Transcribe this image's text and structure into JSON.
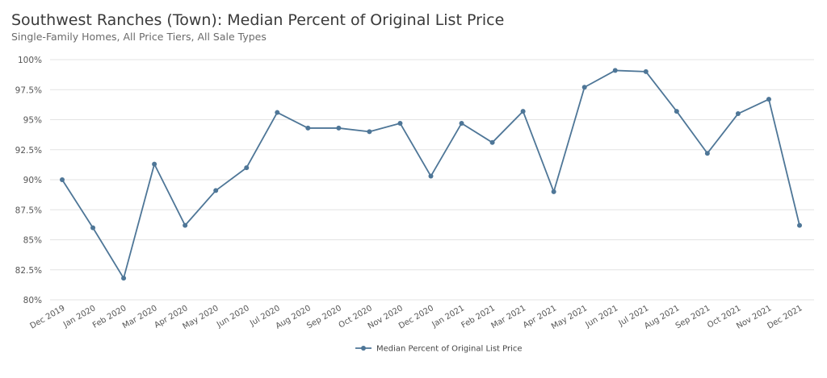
{
  "chart_data": {
    "type": "line",
    "title": "Southwest Ranches (Town): Median Percent of Original List Price",
    "subtitle": "Single-Family Homes, All Price Tiers, All Sale Types",
    "xlabel": "",
    "ylabel": "",
    "ylim": [
      80,
      100
    ],
    "yticks": [
      80,
      82.5,
      85,
      87.5,
      90,
      92.5,
      95,
      97.5,
      100
    ],
    "ytick_labels": [
      "80%",
      "82.5%",
      "85%",
      "87.5%",
      "90%",
      "92.5%",
      "95%",
      "97.5%",
      "100%"
    ],
    "grid": true,
    "legend_position": "bottom-center",
    "categories": [
      "Dec 2019",
      "Jan 2020",
      "Feb 2020",
      "Mar 2020",
      "Apr 2020",
      "May 2020",
      "Jun 2020",
      "Jul 2020",
      "Aug 2020",
      "Sep 2020",
      "Oct 2020",
      "Nov 2020",
      "Dec 2020",
      "Jan 2021",
      "Feb 2021",
      "Mar 2021",
      "Apr 2021",
      "May 2021",
      "Jun 2021",
      "Jul 2021",
      "Aug 2021",
      "Sep 2021",
      "Oct 2021",
      "Nov 2021",
      "Dec 2021"
    ],
    "series": [
      {
        "name": "Median Percent of Original List Price",
        "color": "#4e7697",
        "values": [
          90.0,
          86.0,
          81.8,
          91.3,
          86.2,
          89.1,
          91.0,
          95.6,
          94.3,
          94.3,
          94.0,
          94.7,
          90.3,
          94.7,
          93.1,
          95.7,
          89.0,
          97.7,
          99.1,
          99.0,
          95.7,
          92.2,
          95.5,
          96.7,
          86.2
        ]
      }
    ]
  }
}
